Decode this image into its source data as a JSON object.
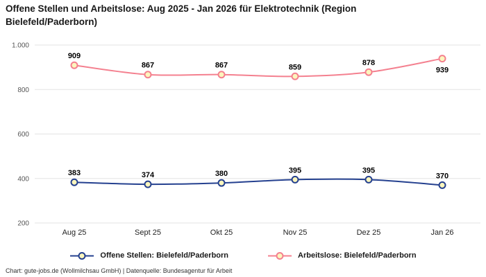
{
  "chart_data": {
    "type": "line",
    "title": "Offene Stellen und Arbeitslose: Aug 2025 - Jan 2026 für Elektrotechnik (Region Bielefeld/Paderborn)",
    "categories": [
      "Aug 25",
      "Sept 25",
      "Okt 25",
      "Nov 25",
      "Dez 25",
      "Jan 26"
    ],
    "series": [
      {
        "name": "Offene Stellen: Bielefeld/Paderborn",
        "color": "#24408f",
        "values": [
          383,
          374,
          380,
          395,
          395,
          370
        ]
      },
      {
        "name": "Arbeitslose: Bielefeld/Paderborn",
        "color": "#f4808f",
        "values": [
          909,
          867,
          867,
          859,
          878,
          939
        ]
      }
    ],
    "y_ticks": [
      "1.000",
      "800",
      "600",
      "400",
      "200"
    ],
    "y_tick_values": [
      1000,
      800,
      600,
      400,
      200
    ],
    "ylim": [
      200,
      1000
    ],
    "grid": true,
    "legend_position": "bottom",
    "marker_fill": "#fcf6bd",
    "grid_color": "#e3e3e3",
    "label_color": "#000000",
    "axis_text_color": "#555555",
    "x_text_color": "#222222"
  },
  "footer": {
    "caption": "Chart: gute-jobs.de (Wollmilchsau GmbH) | Datenquelle: Bundesagentur für Arbeit"
  }
}
